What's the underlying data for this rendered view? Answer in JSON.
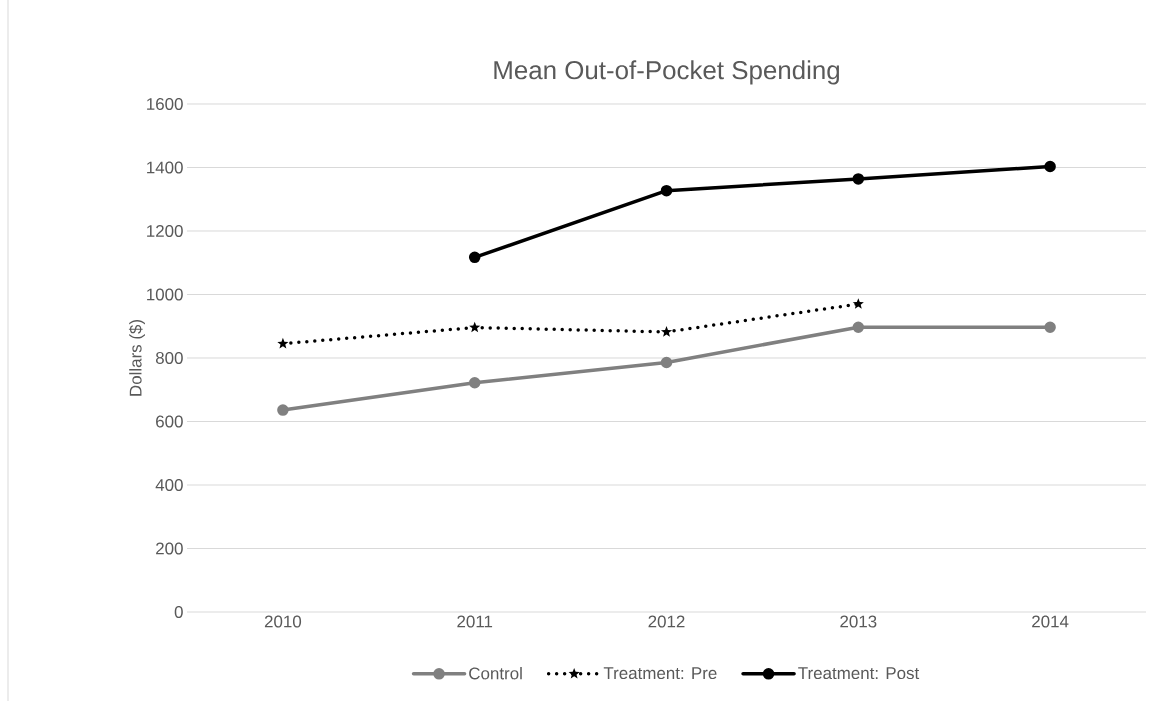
{
  "chart_data": {
    "type": "line",
    "title": "Mean Out-of-Pocket Spending",
    "ylabel": "Dollars ($)",
    "categories": [
      "2010",
      "2011",
      "2012",
      "2013",
      "2014"
    ],
    "series": [
      {
        "name": "Control",
        "color": "#808080",
        "marker": "circle",
        "line_style": "solid",
        "values": [
          636,
          722,
          786,
          897,
          897
        ]
      },
      {
        "name": "Treatment: Pre",
        "color": "#000000",
        "marker": "star",
        "line_style": "dotted",
        "values": [
          845,
          896,
          882,
          970,
          null
        ]
      },
      {
        "name": "Treatment: Post",
        "color": "#000000",
        "marker": "circle",
        "line_style": "solid",
        "values": [
          null,
          1117,
          1327,
          1364,
          1403
        ]
      }
    ],
    "ylim": [
      0,
      1600
    ],
    "yticks": [
      0,
      200,
      400,
      600,
      800,
      1000,
      1200,
      1400,
      1600
    ],
    "grid": "y",
    "legend": "bottom"
  }
}
